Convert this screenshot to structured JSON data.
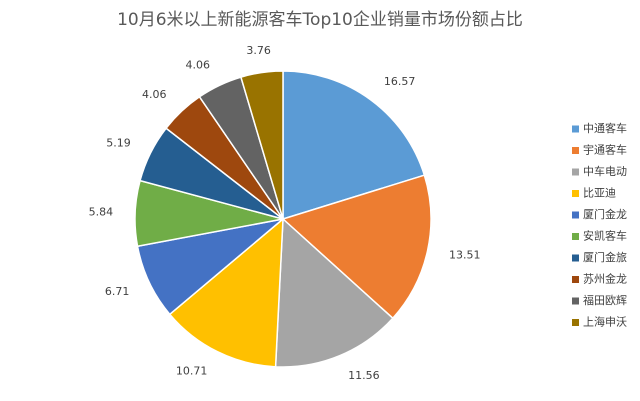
{
  "chart_data": {
    "type": "pie",
    "title": "10月6米以上新能源客车Top10企业销量市场份额占比",
    "categories": [
      "中通客车",
      "宇通客车",
      "中车电动",
      "比亚迪",
      "厦门金龙",
      "安凯客车",
      "厦门金旅",
      "苏州金龙",
      "福田欧辉",
      "上海申沃"
    ],
    "values": [
      16.57,
      13.51,
      11.56,
      10.71,
      6.71,
      5.84,
      5.19,
      4.06,
      4.06,
      3.76
    ],
    "colors": [
      "#5b9bd5",
      "#ed7d31",
      "#a5a5a5",
      "#ffc000",
      "#4472c4",
      "#70ad47",
      "#255e91",
      "#9e480e",
      "#636363",
      "#997300"
    ],
    "legend": "right"
  }
}
